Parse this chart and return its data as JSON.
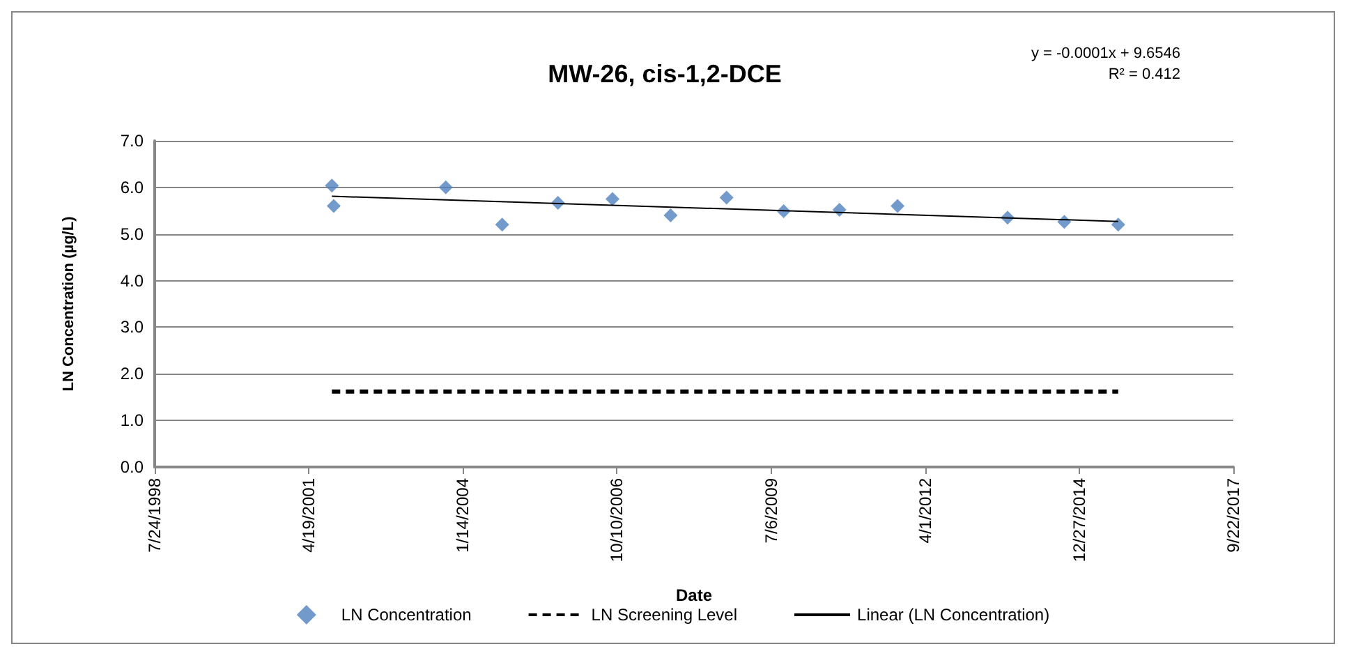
{
  "chart_data": {
    "type": "scatter",
    "title": "MW-26, cis-1,2-DCE",
    "xlabel": "Date",
    "ylabel": "LN Concentration (µg/L)",
    "annotations": [
      "y = -0.0001x + 9.6546",
      "R² = 0.412"
    ],
    "xlim": [
      "1998-07-24",
      "2017-09-22"
    ],
    "xticks": [
      {
        "value": "1998-07-24",
        "label": "7/24/1998"
      },
      {
        "value": "2001-04-19",
        "label": "4/19/2001"
      },
      {
        "value": "2004-01-14",
        "label": "1/14/2004"
      },
      {
        "value": "2006-10-10",
        "label": "10/10/2006"
      },
      {
        "value": "2009-07-06",
        "label": "7/6/2009"
      },
      {
        "value": "2012-04-01",
        "label": "4/1/2012"
      },
      {
        "value": "2014-12-27",
        "label": "12/27/2014"
      },
      {
        "value": "2017-09-22",
        "label": "9/22/2017"
      }
    ],
    "ylim": [
      0,
      7
    ],
    "yticks": [
      {
        "value": 0,
        "label": "0.0"
      },
      {
        "value": 1,
        "label": "1.0"
      },
      {
        "value": 2,
        "label": "2.0"
      },
      {
        "value": 3,
        "label": "3.0"
      },
      {
        "value": 4,
        "label": "4.0"
      },
      {
        "value": 5,
        "label": "5.0"
      },
      {
        "value": 6,
        "label": "6.0"
      },
      {
        "value": 7,
        "label": "7.0"
      }
    ],
    "grid": "y",
    "legend": "bottom",
    "series": [
      {
        "name": "LN Concentration",
        "color": "#4f81bd",
        "marker": "diamond",
        "x": [
          "2001-09-16",
          "2001-09-28",
          "2003-09-25",
          "2004-09-25",
          "2005-09-22",
          "2006-09-11",
          "2007-09-23",
          "2008-09-20",
          "2009-09-26",
          "2010-09-23",
          "2011-10-05",
          "2013-09-18",
          "2014-09-21",
          "2015-09-06"
        ],
        "values": [
          6.04,
          5.6,
          6.0,
          5.2,
          5.67,
          5.75,
          5.4,
          5.78,
          5.49,
          5.52,
          5.6,
          5.35,
          5.26,
          5.2
        ]
      },
      {
        "name": "LN Screening Level",
        "type": "line",
        "color": "#000000",
        "line_style": "dashed",
        "marker": "none",
        "x": [
          "2001-09-16",
          "2015-09-06"
        ],
        "values": [
          1.62,
          1.62
        ]
      },
      {
        "name": "Linear (LN Concentration)",
        "type": "line",
        "color": "#000000",
        "line_style": "solid",
        "marker": "none",
        "x": [
          "2001-09-16",
          "2015-09-06"
        ],
        "values": [
          5.81,
          5.27
        ]
      }
    ]
  }
}
